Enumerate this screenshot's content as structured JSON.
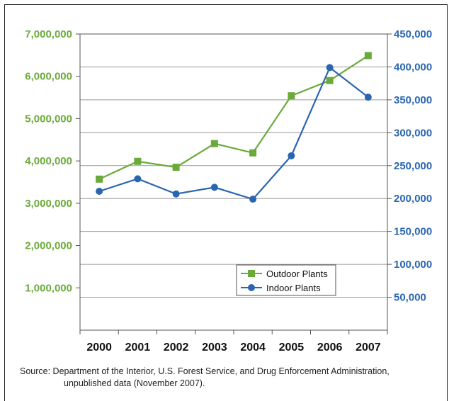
{
  "chart_data": {
    "type": "line",
    "categories": [
      "2000",
      "2001",
      "2002",
      "2003",
      "2004",
      "2005",
      "2006",
      "2007"
    ],
    "series": [
      {
        "name": "Outdoor Plants",
        "axis": "left",
        "marker": "square",
        "color": "#6aaa3a",
        "values": [
          3570000,
          3990000,
          3850000,
          4410000,
          4190000,
          5540000,
          5900000,
          6490000
        ]
      },
      {
        "name": "Indoor Plants",
        "axis": "right",
        "marker": "circle",
        "color": "#2a66b0",
        "values": [
          211000,
          230000,
          207000,
          217000,
          199000,
          265000,
          399000,
          354000
        ]
      }
    ],
    "y_left": {
      "lim": [
        0,
        7000000
      ],
      "ticks": [
        1000000,
        2000000,
        3000000,
        4000000,
        5000000,
        6000000,
        7000000
      ],
      "tick_labels": [
        "1,000,000",
        "2,000,000",
        "3,000,000",
        "4,000,000",
        "5,000,000",
        "6,000,000",
        "7,000,000"
      ],
      "color": "#6aaa3a"
    },
    "y_right": {
      "lim": [
        0,
        450000
      ],
      "ticks": [
        50000,
        100000,
        150000,
        200000,
        250000,
        300000,
        350000,
        400000,
        450000
      ],
      "tick_labels": [
        "50,000",
        "100,000",
        "150,000",
        "200,000",
        "250,000",
        "300,000",
        "350,000",
        "400,000",
        "450,000"
      ],
      "color": "#2a66b0"
    },
    "grid": true,
    "legend_position": "bottom-right",
    "title": "",
    "xlabel": "",
    "ylabel": ""
  },
  "source": {
    "line1": "Source: Department of the Interior, U.S. Forest Service, and Drug Enforcement Administration,",
    "line2": "unpublished data (November 2007)."
  }
}
